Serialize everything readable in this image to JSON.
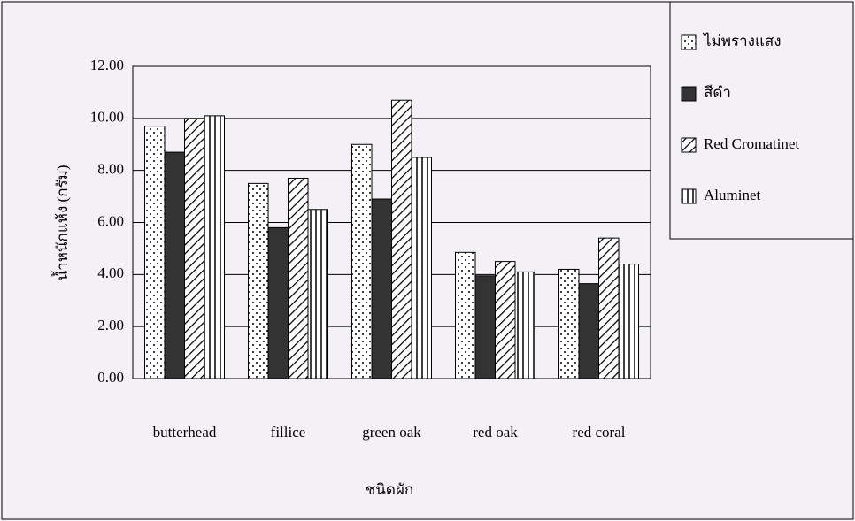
{
  "chart_data": {
    "type": "bar",
    "x_label": "ชนิดผัก",
    "y_label": "น้ำหนักแห้ง (กรัม)",
    "categories": [
      "butterhead",
      "fillice",
      "green oak",
      "red oak",
      "red coral"
    ],
    "series": [
      {
        "name": "ไม่พรางแสง",
        "color": "#ffffff",
        "pattern": "dots",
        "values": [
          9.7,
          7.5,
          9.0,
          4.85,
          4.2
        ]
      },
      {
        "name": "สีดำ",
        "color": "#333333",
        "pattern": "solid",
        "values": [
          8.7,
          5.8,
          6.9,
          3.95,
          3.65
        ]
      },
      {
        "name": "Red Cromatinet",
        "color": "#ffffff",
        "pattern": "diagonal",
        "values": [
          10.0,
          7.7,
          10.7,
          4.5,
          5.4
        ]
      },
      {
        "name": "Aluminet",
        "color": "#ffffff",
        "pattern": "vertical",
        "values": [
          10.1,
          6.5,
          8.5,
          4.1,
          4.4
        ]
      }
    ],
    "ylim": [
      0,
      12
    ],
    "yticks": [
      {
        "value": 0,
        "label": "0.00"
      },
      {
        "value": 2,
        "label": "2.00"
      },
      {
        "value": 4,
        "label": "4.00"
      },
      {
        "value": 6,
        "label": "6.00"
      },
      {
        "value": 8,
        "label": "8.00"
      },
      {
        "value": 10,
        "label": "10.00"
      },
      {
        "value": 12,
        "label": "12.00"
      }
    ],
    "grid": true,
    "legend": "right"
  }
}
